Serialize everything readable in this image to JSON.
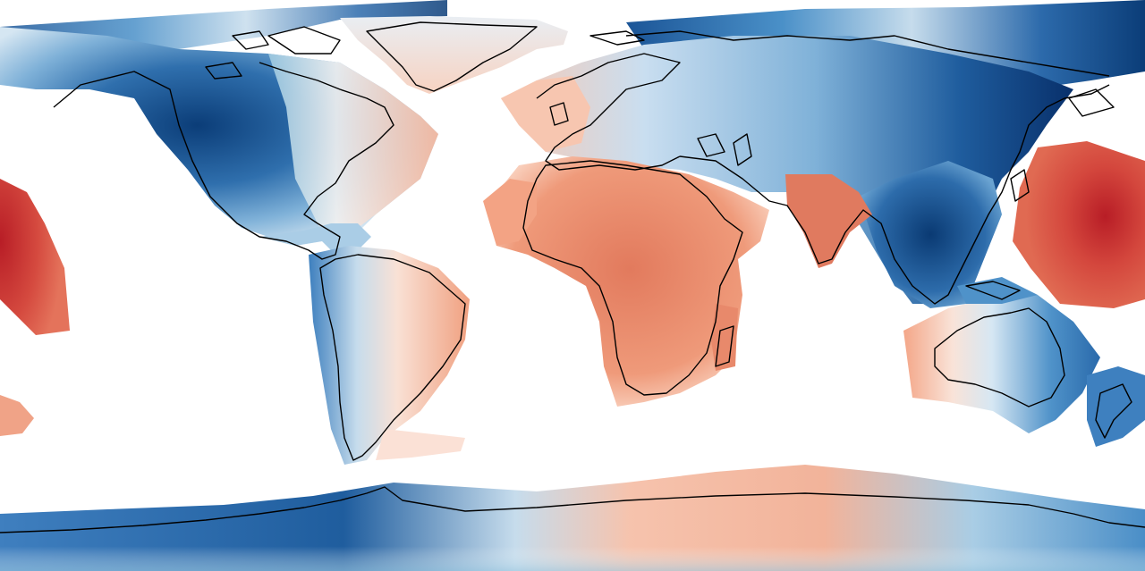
{
  "map": {
    "projection": "equirectangular",
    "background_color": "#ffffff",
    "coastline_color": "#000000",
    "palette": {
      "deep_blue": "#08306b",
      "dark_blue": "#1e5fa3",
      "mid_blue": "#4a90c8",
      "light_blue": "#9ecae1",
      "pale_blue": "#d5e6f2",
      "near_white": "#f7f4f2",
      "pale_red": "#fbd9c8",
      "light_red": "#f4a582",
      "mid_red": "#e58466",
      "strong_red": "#d6604d",
      "dark_red": "#c4262c"
    },
    "regions": [
      {
        "name": "north-america",
        "tone": "blue"
      },
      {
        "name": "greenland",
        "tone": "neutral"
      },
      {
        "name": "south-america",
        "tone": "mixed"
      },
      {
        "name": "europe-asia",
        "tone": "blue"
      },
      {
        "name": "africa",
        "tone": "red"
      },
      {
        "name": "india",
        "tone": "red"
      },
      {
        "name": "australia",
        "tone": "mixed"
      },
      {
        "name": "antarctica",
        "tone": "mixed"
      },
      {
        "name": "pacific-west",
        "tone": "red"
      },
      {
        "name": "pacific-east",
        "tone": "red"
      }
    ]
  }
}
